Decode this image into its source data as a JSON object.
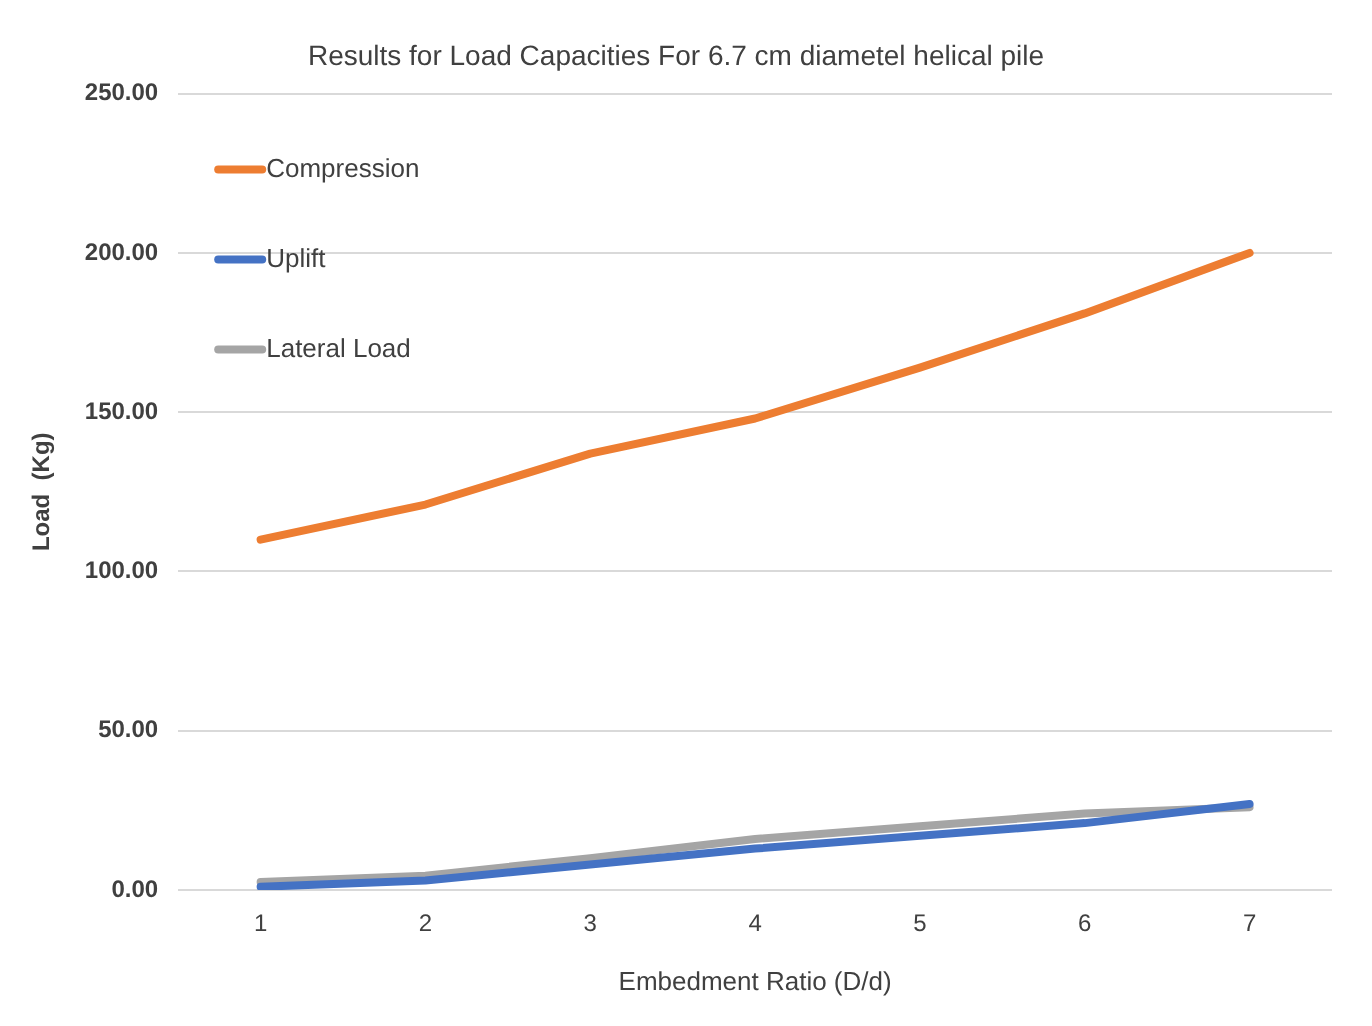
{
  "chart_data": {
    "type": "line",
    "title": "Results for Load Capacities For 6.7 cm diametel helical pile",
    "xlabel": "Embedment Ratio (D/d)",
    "ylabel": "Load  (Kg)",
    "categories": [
      "1",
      "2",
      "3",
      "4",
      "5",
      "6",
      "7"
    ],
    "series": [
      {
        "name": "Compression",
        "color": "#ed7d31",
        "values": [
          110,
          121,
          137,
          148,
          164,
          181,
          200
        ]
      },
      {
        "name": "Uplift",
        "color": "#4472c4",
        "values": [
          1,
          3,
          8,
          13,
          17,
          21,
          27
        ]
      },
      {
        "name": "Lateral Load",
        "color": "#a5a5a5",
        "values": [
          2.5,
          4.5,
          10,
          16,
          20,
          24,
          26
        ]
      }
    ],
    "ylim": [
      0,
      250
    ],
    "yticks": [
      {
        "value": 0,
        "label": "0.00"
      },
      {
        "value": 50,
        "label": "50.00"
      },
      {
        "value": 100,
        "label": "100.00"
      },
      {
        "value": 150,
        "label": "150.00"
      },
      {
        "value": 200,
        "label": "200.00"
      },
      {
        "value": 250,
        "label": "250.00"
      }
    ],
    "grid": "y",
    "legend": "top left",
    "marker": "none",
    "line_style": "solid"
  }
}
